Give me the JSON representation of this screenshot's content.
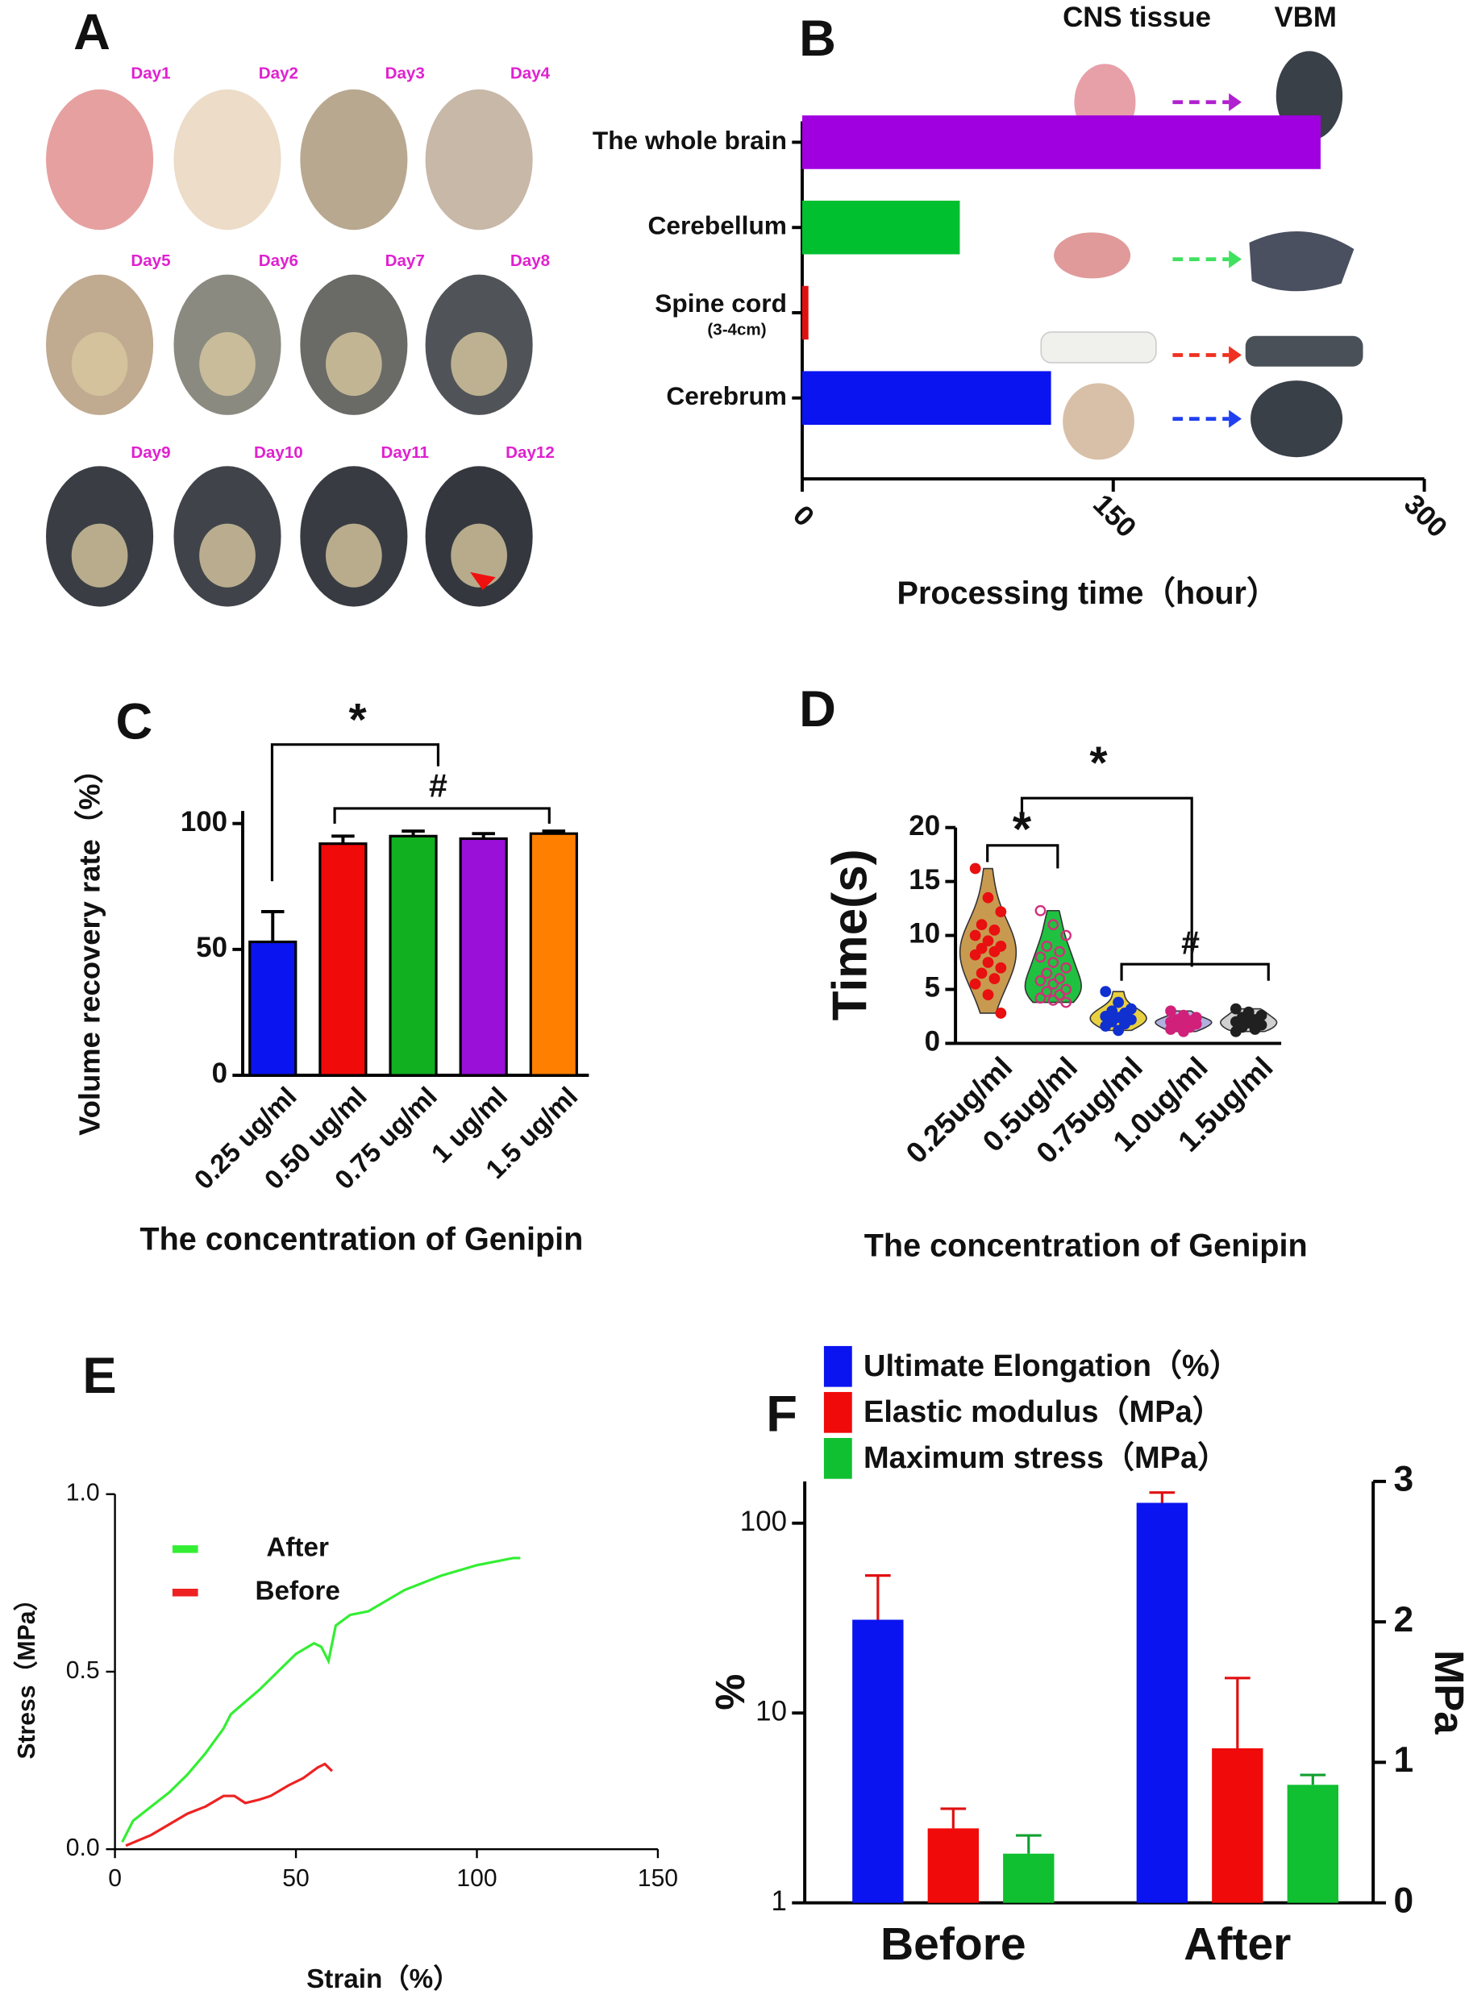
{
  "panel_labels": [
    "A",
    "B",
    "C",
    "D",
    "E",
    "F"
  ],
  "photo_grid": {
    "days": [
      "Day1",
      "Day2",
      "Day3",
      "Day4",
      "Day5",
      "Day6",
      "Day7",
      "Day8",
      "Day9",
      "Day10",
      "Day11",
      "Day12"
    ],
    "label_color": "#e020d0"
  },
  "chart_data": [
    {
      "type": "barh",
      "column_headers": [
        "CNS tissue",
        "VBM"
      ],
      "categories": [
        "The whole brain",
        "Cerebellum",
        "Spine cord",
        "Cerebrum"
      ],
      "category_sublabels": [
        null,
        null,
        "(3-4cm)",
        null
      ],
      "values": [
        250,
        76,
        3,
        120
      ],
      "colors": [
        "#a000e0",
        "#00c030",
        "#e01010",
        "#0a14f0"
      ],
      "xlim": [
        0,
        300
      ],
      "xticks": [
        0,
        150,
        300
      ],
      "xlabel": "Processing time（hour）"
    },
    {
      "type": "bar",
      "categories": [
        "0.25 ug/ml",
        "0.50 ug/ml",
        "0.75 ug/ml",
        "1 ug/ml",
        "1.5 ug/ml"
      ],
      "values": [
        53,
        92,
        95,
        94,
        96
      ],
      "errors": [
        12,
        3,
        2,
        2,
        1
      ],
      "colors": [
        "#0a14f0",
        "#f00a0a",
        "#10b020",
        "#9a10d8",
        "#ff8000"
      ],
      "ylim": [
        0,
        105
      ],
      "yticks": [
        0,
        50,
        100
      ],
      "ylabel": "Volume recovery rate（%）",
      "xlabel": "The concentration of Genipin",
      "annotations": [
        "*",
        "#"
      ]
    },
    {
      "type": "violin",
      "categories": [
        "0.25ug/ml",
        "0.5ug/ml",
        "0.75ug/ml",
        "1.0ug/ml",
        "1.5ug/ml"
      ],
      "groups": [
        {
          "fill": "#c89a50",
          "point_color": "#e81010",
          "values": [
            16.2,
            13.5,
            12.2,
            11,
            10.5,
            10,
            9.5,
            9,
            8.8,
            8.5,
            8.2,
            7.5,
            7,
            6.5,
            6,
            5.5,
            4.5,
            2.8
          ]
        },
        {
          "fill": "#20c040",
          "point_color": "#d0307a",
          "values": [
            12.3,
            11,
            10,
            9,
            8.5,
            8,
            7.5,
            7,
            6.5,
            6,
            5.8,
            5.5,
            5,
            4.8,
            4.5,
            4.2,
            4,
            3.8
          ]
        },
        {
          "fill": "#e8d040",
          "point_color": "#1030d0",
          "values": [
            4.8,
            3.8,
            3.2,
            3,
            2.8,
            2.5,
            2.4,
            2.2,
            2,
            1.8,
            1.6,
            1.2
          ]
        },
        {
          "fill": "#b0b0e0",
          "point_color": "#d0207a",
          "values": [
            3,
            2.6,
            2.4,
            2.2,
            2.1,
            2,
            1.9,
            1.8,
            1.6,
            1.5,
            1.3,
            1.1
          ]
        },
        {
          "fill": "#d0d0d0",
          "point_color": "#202020",
          "values": [
            3.2,
            2.9,
            2.6,
            2.4,
            2.2,
            2,
            1.9,
            1.7,
            1.5,
            1.3,
            1.1
          ]
        }
      ],
      "ylim": [
        0,
        20
      ],
      "yticks": [
        0,
        5,
        10,
        15,
        20
      ],
      "ylabel": "Time(s)",
      "xlabel": "The concentration of Genipin",
      "annotations": [
        "*",
        "*",
        "#"
      ]
    },
    {
      "type": "line",
      "series": [
        {
          "name": "After",
          "color": "#33ee33",
          "x": [
            2,
            5,
            10,
            15,
            20,
            25,
            30,
            32,
            40,
            45,
            50,
            55,
            57,
            59,
            61,
            65,
            70,
            80,
            90,
            100,
            110,
            112
          ],
          "values": [
            0.02,
            0.08,
            0.12,
            0.16,
            0.21,
            0.27,
            0.34,
            0.38,
            0.45,
            0.5,
            0.55,
            0.58,
            0.57,
            0.53,
            0.63,
            0.66,
            0.67,
            0.73,
            0.77,
            0.8,
            0.82,
            0.82
          ]
        },
        {
          "name": "Before",
          "color": "#ee2222",
          "x": [
            3,
            10,
            20,
            25,
            30,
            33,
            36,
            40,
            43,
            48,
            52,
            56,
            58,
            60
          ],
          "values": [
            0.01,
            0.04,
            0.1,
            0.12,
            0.15,
            0.15,
            0.13,
            0.14,
            0.15,
            0.18,
            0.2,
            0.23,
            0.24,
            0.22
          ]
        }
      ],
      "xlim": [
        0,
        150
      ],
      "xticks": [
        0,
        50,
        100,
        150
      ],
      "ylim": [
        0,
        1
      ],
      "yticks": [
        {
          "value": 0,
          "label": "0.0"
        },
        {
          "value": 0.5,
          "label": "0.5"
        },
        {
          "value": 1,
          "label": "1.0"
        }
      ],
      "xlabel": "Strain（%）",
      "ylabel": "Stress（MPa）"
    },
    {
      "type": "bar_dual",
      "categories": [
        "Before",
        "After"
      ],
      "series": [
        {
          "name": "Ultimate Elongation（%）",
          "color": "#0a14f0",
          "error_color": "#e01010",
          "axis": "y",
          "values": [
            31,
            128
          ],
          "errors": [
            22,
            17
          ]
        },
        {
          "name": "Elastic modulus（MPa）",
          "color": "#f00a0a",
          "error_color": "#e01010",
          "axis": "y2",
          "values": [
            0.53,
            1.1
          ],
          "errors": [
            0.14,
            0.5
          ]
        },
        {
          "name": "Maximum stress（MPa）",
          "color": "#10c030",
          "error_color": "#10a030",
          "axis": "y2",
          "values": [
            0.35,
            0.84
          ],
          "errors": [
            0.13,
            0.07
          ]
        }
      ],
      "yscale": "log",
      "ylim": [
        1,
        166
      ],
      "yticks": [
        1,
        10,
        100
      ],
      "y2lim": [
        0,
        3
      ],
      "y2ticks": [
        0,
        1,
        2,
        3
      ],
      "ylabel": "%",
      "y2label": "MPa"
    }
  ]
}
